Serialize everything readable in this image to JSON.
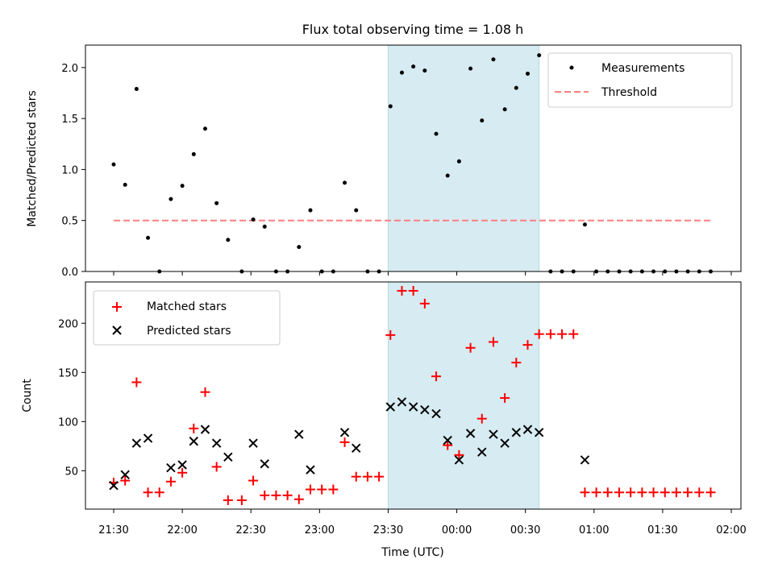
{
  "chart_data": [
    {
      "type": "scatter",
      "title": "Flux total observing time = 1.08 h",
      "ylabel": "Matched/Predicted stars",
      "ylim": [
        0,
        2.22
      ],
      "yticks": [
        "0.0",
        "0.5",
        "1.0",
        "1.5",
        "2.0"
      ],
      "x_axis": "time",
      "x_ticks_labels_shown": false,
      "shaded_span": {
        "from": "23:30",
        "to": "00:36",
        "color": "#add8e6"
      },
      "legend": {
        "placement": "upper right",
        "entries": [
          "Measurements",
          "Threshold"
        ]
      },
      "series": [
        {
          "name": "Measurements",
          "marker": "dot",
          "color": "#000000",
          "points": [
            [
              "21:30",
              1.05
            ],
            [
              "21:35",
              0.85
            ],
            [
              "21:40",
              1.79
            ],
            [
              "21:45",
              0.33
            ],
            [
              "21:50",
              0.0
            ],
            [
              "21:55",
              0.71
            ],
            [
              "22:00",
              0.84
            ],
            [
              "22:05",
              1.15
            ],
            [
              "22:10",
              1.4
            ],
            [
              "22:15",
              0.67
            ],
            [
              "22:20",
              0.31
            ],
            [
              "22:26",
              0.0
            ],
            [
              "22:31",
              0.51
            ],
            [
              "22:36",
              0.44
            ],
            [
              "22:41",
              0.0
            ],
            [
              "22:46",
              0.0
            ],
            [
              "22:51",
              0.24
            ],
            [
              "22:56",
              0.6
            ],
            [
              "23:01",
              0.0
            ],
            [
              "23:06",
              0.0
            ],
            [
              "23:11",
              0.87
            ],
            [
              "23:16",
              0.6
            ],
            [
              "23:21",
              0.0
            ],
            [
              "23:26",
              0.0
            ],
            [
              "23:31",
              1.62
            ],
            [
              "23:36",
              1.95
            ],
            [
              "23:41",
              2.01
            ],
            [
              "23:46",
              1.97
            ],
            [
              "23:51",
              1.35
            ],
            [
              "23:56",
              0.94
            ],
            [
              "00:01",
              1.08
            ],
            [
              "00:06",
              1.99
            ],
            [
              "00:11",
              1.48
            ],
            [
              "00:16",
              2.08
            ],
            [
              "00:21",
              1.59
            ],
            [
              "00:26",
              1.8
            ],
            [
              "00:31",
              1.94
            ],
            [
              "00:36",
              2.12
            ],
            [
              "00:41",
              0.0
            ],
            [
              "00:46",
              0.0
            ],
            [
              "00:51",
              0.0
            ],
            [
              "00:56",
              0.46
            ],
            [
              "01:01",
              0.0
            ],
            [
              "01:06",
              0.0
            ],
            [
              "01:11",
              0.0
            ],
            [
              "01:16",
              0.0
            ],
            [
              "01:21",
              0.0
            ],
            [
              "01:26",
              0.0
            ],
            [
              "01:31",
              0.0
            ],
            [
              "01:36",
              0.0
            ],
            [
              "01:41",
              0.0
            ],
            [
              "01:46",
              0.0
            ],
            [
              "01:51",
              0.0
            ]
          ]
        },
        {
          "name": "Threshold",
          "style": "dashed-line",
          "color": "#ff7f7f",
          "points": [
            [
              "21:30",
              0.5
            ],
            [
              "01:51",
              0.5
            ]
          ]
        }
      ]
    },
    {
      "type": "scatter",
      "xlabel": "Time (UTC)",
      "ylabel": "Count",
      "ylim": [
        11,
        242
      ],
      "yticks": [
        "50",
        "100",
        "150",
        "200"
      ],
      "x_axis": "time",
      "x_ticks": [
        "21:30",
        "22:00",
        "22:30",
        "23:00",
        "23:30",
        "00:00",
        "00:30",
        "01:00",
        "01:30",
        "02:00"
      ],
      "shaded_span": {
        "from": "23:30",
        "to": "00:36",
        "color": "#add8e6"
      },
      "legend": {
        "placement": "upper left",
        "entries": [
          "Matched stars",
          "Predicted stars"
        ]
      },
      "series": [
        {
          "name": "Matched stars",
          "marker": "plus",
          "color": "#ff0000",
          "points": [
            [
              "21:30",
              38
            ],
            [
              "21:35",
              40
            ],
            [
              "21:40",
              140
            ],
            [
              "21:45",
              28
            ],
            [
              "21:50",
              28
            ],
            [
              "21:55",
              39
            ],
            [
              "22:00",
              48
            ],
            [
              "22:05",
              93
            ],
            [
              "22:10",
              130
            ],
            [
              "22:15",
              54
            ],
            [
              "22:20",
              20
            ],
            [
              "22:26",
              20
            ],
            [
              "22:31",
              40
            ],
            [
              "22:36",
              25
            ],
            [
              "22:41",
              25
            ],
            [
              "22:46",
              25
            ],
            [
              "22:51",
              21
            ],
            [
              "22:56",
              31
            ],
            [
              "23:01",
              31
            ],
            [
              "23:06",
              31
            ],
            [
              "23:11",
              79
            ],
            [
              "23:16",
              44
            ],
            [
              "23:21",
              44
            ],
            [
              "23:26",
              44
            ],
            [
              "23:31",
              188
            ],
            [
              "23:36",
              233
            ],
            [
              "23:41",
              233
            ],
            [
              "23:46",
              220
            ],
            [
              "23:51",
              146
            ],
            [
              "23:56",
              76
            ],
            [
              "00:01",
              66
            ],
            [
              "00:06",
              175
            ],
            [
              "00:11",
              103
            ],
            [
              "00:16",
              181
            ],
            [
              "00:21",
              124
            ],
            [
              "00:26",
              160
            ],
            [
              "00:31",
              178
            ],
            [
              "00:36",
              189
            ],
            [
              "00:41",
              189
            ],
            [
              "00:46",
              189
            ],
            [
              "00:51",
              189
            ],
            [
              "00:56",
              28
            ],
            [
              "01:01",
              28
            ],
            [
              "01:06",
              28
            ],
            [
              "01:11",
              28
            ],
            [
              "01:16",
              28
            ],
            [
              "01:21",
              28
            ],
            [
              "01:26",
              28
            ],
            [
              "01:31",
              28
            ],
            [
              "01:36",
              28
            ],
            [
              "01:41",
              28
            ],
            [
              "01:46",
              28
            ],
            [
              "01:51",
              28
            ]
          ]
        },
        {
          "name": "Predicted stars",
          "marker": "x",
          "color": "#000000",
          "points": [
            [
              "21:30",
              35
            ],
            [
              "21:35",
              46
            ],
            [
              "21:40",
              78
            ],
            [
              "21:45",
              83
            ],
            [
              "21:55",
              53
            ],
            [
              "22:00",
              56
            ],
            [
              "22:05",
              80
            ],
            [
              "22:10",
              92
            ],
            [
              "22:15",
              78
            ],
            [
              "22:20",
              64
            ],
            [
              "22:31",
              78
            ],
            [
              "22:36",
              57
            ],
            [
              "22:51",
              87
            ],
            [
              "22:56",
              51
            ],
            [
              "23:11",
              89
            ],
            [
              "23:16",
              73
            ],
            [
              "23:31",
              115
            ],
            [
              "23:36",
              120
            ],
            [
              "23:41",
              115
            ],
            [
              "23:46",
              112
            ],
            [
              "23:51",
              108
            ],
            [
              "23:56",
              81
            ],
            [
              "00:01",
              61
            ],
            [
              "00:06",
              88
            ],
            [
              "00:11",
              69
            ],
            [
              "00:16",
              87
            ],
            [
              "00:21",
              78
            ],
            [
              "00:26",
              89
            ],
            [
              "00:31",
              92
            ],
            [
              "00:36",
              89
            ],
            [
              "00:56",
              61
            ]
          ]
        }
      ]
    }
  ]
}
